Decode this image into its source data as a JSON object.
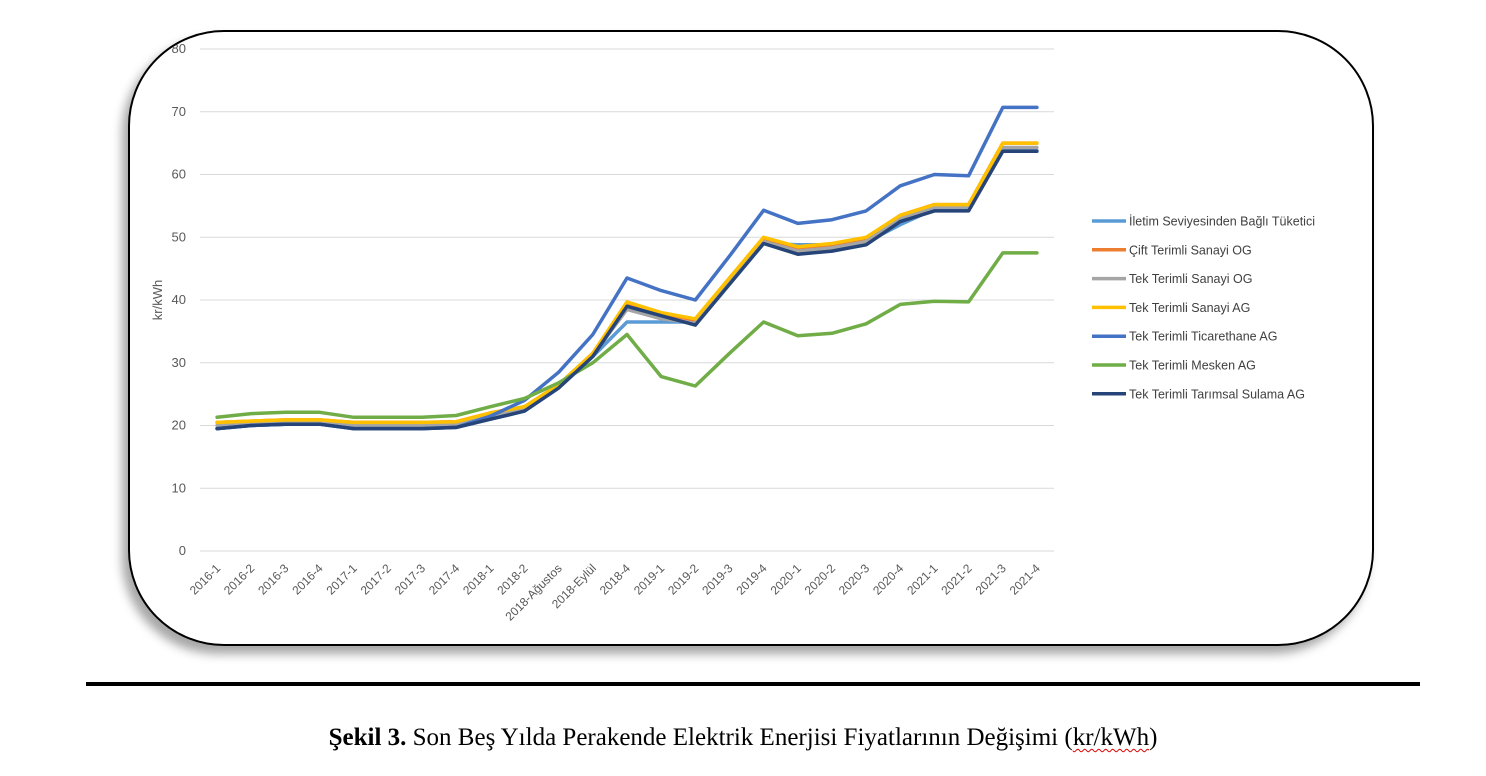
{
  "caption": {
    "label": "Şekil 3.",
    "text": " Son Beş Yılda Perakende Elektrik Enerjisi Fiyatlarının Değişimi (",
    "unit": "kr/kWh",
    "close": ")"
  },
  "chart_data": {
    "type": "line",
    "title": "",
    "xlabel": "",
    "ylabel": "kr/kWh",
    "ylim": [
      0,
      80
    ],
    "yticks": [
      0,
      10,
      20,
      30,
      40,
      50,
      60,
      70,
      80
    ],
    "grid": true,
    "legend_position": "right",
    "categories": [
      "2016-1",
      "2016-2",
      "2016-3",
      "2016-4",
      "2017-1",
      "2017-2",
      "2017-3",
      "2017-4",
      "2018-1",
      "2018-2",
      "2018-Ağustos",
      "2018-Eylül",
      "2018-4",
      "2019-1",
      "2019-2",
      "2019-3",
      "2019-4",
      "2020-1",
      "2020-2",
      "2020-3",
      "2020-4",
      "2021-1",
      "2021-2",
      "2021-3",
      "2021-4"
    ],
    "series": [
      {
        "name": "İletim Seviyesinden Bağlı Tüketici",
        "color": "#5b9bd5",
        "values": [
          19.5,
          20.0,
          20.2,
          20.2,
          19.5,
          19.5,
          19.5,
          19.7,
          21.0,
          22.3,
          26.0,
          31.0,
          36.5,
          36.5,
          36.5,
          43.0,
          49.0,
          48.8,
          48.8,
          49.2,
          52.0,
          54.5,
          54.5,
          63.8,
          63.8
        ]
      },
      {
        "name": "Çift Terimli Sanayi OG",
        "color": "#ed7d31",
        "values": [
          20.5,
          20.7,
          20.9,
          20.9,
          20.5,
          20.5,
          20.5,
          20.6,
          22.0,
          23.0,
          26.5,
          31.5,
          39.5,
          37.8,
          36.8,
          43.5,
          49.8,
          48.3,
          48.8,
          49.8,
          53.5,
          55.2,
          55.2,
          65.0,
          65.0
        ]
      },
      {
        "name": "Tek Terimli Sanayi OG",
        "color": "#a5a5a5",
        "values": [
          20.0,
          20.3,
          20.5,
          20.5,
          20.0,
          20.0,
          20.0,
          20.2,
          21.6,
          22.6,
          26.2,
          31.2,
          38.5,
          37.0,
          36.3,
          43.0,
          49.3,
          47.8,
          48.3,
          49.3,
          53.0,
          54.8,
          54.8,
          64.3,
          64.3
        ]
      },
      {
        "name": "Tek Terimli Sanayi AG",
        "color": "#ffc000",
        "values": [
          20.5,
          20.7,
          20.9,
          20.9,
          20.5,
          20.5,
          20.5,
          20.6,
          22.0,
          23.0,
          26.5,
          31.5,
          39.7,
          38.0,
          37.0,
          43.5,
          50.0,
          48.5,
          49.0,
          50.0,
          53.5,
          55.2,
          55.2,
          65.0,
          65.0
        ]
      },
      {
        "name": "Tek Terimli Ticarethane AG",
        "color": "#4472c4",
        "values": [
          19.5,
          20.0,
          20.2,
          20.2,
          19.5,
          19.5,
          19.5,
          19.7,
          21.5,
          24.0,
          28.5,
          34.5,
          43.5,
          41.5,
          40.0,
          47.0,
          54.3,
          52.2,
          52.8,
          54.2,
          58.2,
          60.0,
          59.8,
          70.7,
          70.7
        ]
      },
      {
        "name": "Tek Terimli Mesken AG",
        "color": "#70ad47",
        "values": [
          21.3,
          21.9,
          22.1,
          22.1,
          21.3,
          21.3,
          21.3,
          21.6,
          23.0,
          24.3,
          26.8,
          30.0,
          34.5,
          27.8,
          26.3,
          31.5,
          36.5,
          34.3,
          34.7,
          36.2,
          39.3,
          39.8,
          39.7,
          47.5,
          47.5
        ]
      },
      {
        "name": "Tek Terimli Tarımsal Sulama AG",
        "color": "#264478",
        "values": [
          19.5,
          20.0,
          20.2,
          20.2,
          19.5,
          19.5,
          19.5,
          19.7,
          21.0,
          22.3,
          26.0,
          31.0,
          39.0,
          37.5,
          36.0,
          42.5,
          49.0,
          47.3,
          47.8,
          48.8,
          52.5,
          54.2,
          54.2,
          63.7,
          63.7
        ]
      }
    ]
  }
}
